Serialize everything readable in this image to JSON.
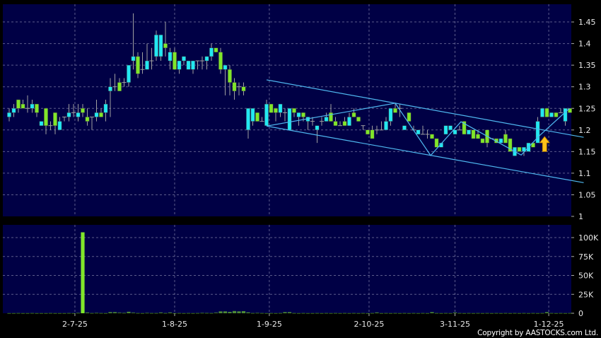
{
  "copyright": "Copyright by AASTOCKS.com Ltd.",
  "colors": {
    "background": "#000000",
    "plot": "#000045",
    "grid": "#5c5c8c",
    "up": "#22e8f2",
    "down": "#80e62a",
    "volume": "#80e62a",
    "trendline": "#4fb8f0",
    "arrow": "#ffc21a"
  },
  "chart_data": {
    "type": "candlestick",
    "price_axis": {
      "range": [
        1.0,
        1.475
      ],
      "ticks": [
        "1",
        "1.05",
        "1.1",
        "1.15",
        "1.2",
        "1.25",
        "1.3",
        "1.35",
        "1.4",
        "1.45"
      ],
      "side": "right"
    },
    "volume_axis": {
      "range": [
        0,
        112000
      ],
      "ticks": [
        "0",
        "25K",
        "50K",
        "75K",
        "100K"
      ],
      "side": "right"
    },
    "date_ticks": [
      "2-7-25",
      "1-8-25",
      "1-9-25",
      "2-10-25",
      "3-11-25",
      "1-12-25"
    ],
    "grid": true,
    "ohlc": [
      [
        1.23,
        1.25,
        1.22,
        1.24
      ],
      [
        1.24,
        1.26,
        1.23,
        1.25
      ],
      [
        1.27,
        1.27,
        1.24,
        1.25
      ],
      [
        1.26,
        1.27,
        1.25,
        1.25
      ],
      [
        1.25,
        1.28,
        1.24,
        1.25
      ],
      [
        1.25,
        1.27,
        1.24,
        1.26
      ],
      [
        1.26,
        1.26,
        1.23,
        1.24
      ],
      [
        1.21,
        1.22,
        1.21,
        1.22
      ],
      [
        1.25,
        1.25,
        1.19,
        1.21
      ],
      [
        1.21,
        1.22,
        1.2,
        1.21
      ],
      [
        1.24,
        1.24,
        1.19,
        1.21
      ],
      [
        1.2,
        1.23,
        1.2,
        1.22
      ],
      [
        1.23,
        1.23,
        1.22,
        1.23
      ],
      [
        1.23,
        1.26,
        1.22,
        1.24
      ],
      [
        1.24,
        1.26,
        1.23,
        1.24
      ],
      [
        1.23,
        1.26,
        1.22,
        1.24
      ],
      [
        1.25,
        1.26,
        1.23,
        1.24
      ],
      [
        1.23,
        1.25,
        1.21,
        1.22
      ],
      [
        1.23,
        1.23,
        1.2,
        1.23
      ],
      [
        1.23,
        1.27,
        1.22,
        1.24
      ],
      [
        1.24,
        1.25,
        1.23,
        1.23
      ],
      [
        1.24,
        1.27,
        1.22,
        1.26
      ],
      [
        1.29,
        1.32,
        1.23,
        1.3
      ],
      [
        1.3,
        1.33,
        1.29,
        1.3
      ],
      [
        1.31,
        1.32,
        1.29,
        1.29
      ],
      [
        1.31,
        1.32,
        1.3,
        1.31
      ],
      [
        1.31,
        1.35,
        1.3,
        1.35
      ],
      [
        1.36,
        1.47,
        1.34,
        1.37
      ],
      [
        1.37,
        1.38,
        1.32,
        1.33
      ],
      [
        1.34,
        1.38,
        1.33,
        1.34
      ],
      [
        1.34,
        1.4,
        1.34,
        1.36
      ],
      [
        1.36,
        1.39,
        1.34,
        1.36
      ],
      [
        1.37,
        1.43,
        1.36,
        1.42
      ],
      [
        1.37,
        1.42,
        1.36,
        1.42
      ],
      [
        1.4,
        1.45,
        1.37,
        1.39
      ],
      [
        1.36,
        1.39,
        1.34,
        1.38
      ],
      [
        1.38,
        1.39,
        1.34,
        1.34
      ],
      [
        1.34,
        1.36,
        1.33,
        1.36
      ],
      [
        1.36,
        1.37,
        1.35,
        1.37
      ],
      [
        1.34,
        1.36,
        1.34,
        1.36
      ],
      [
        1.34,
        1.36,
        1.33,
        1.36
      ],
      [
        1.36,
        1.36,
        1.34,
        1.36
      ],
      [
        1.36,
        1.37,
        1.34,
        1.36
      ],
      [
        1.36,
        1.37,
        1.34,
        1.37
      ],
      [
        1.37,
        1.4,
        1.36,
        1.39
      ],
      [
        1.39,
        1.39,
        1.38,
        1.38
      ],
      [
        1.38,
        1.39,
        1.33,
        1.34
      ],
      [
        1.34,
        1.35,
        1.28,
        1.35
      ],
      [
        1.34,
        1.35,
        1.28,
        1.31
      ],
      [
        1.31,
        1.32,
        1.27,
        1.29
      ],
      [
        1.3,
        1.31,
        1.28,
        1.3
      ],
      [
        1.3,
        1.31,
        1.28,
        1.29
      ],
      [
        1.2,
        1.25,
        1.18,
        1.25
      ],
      [
        1.22,
        1.25,
        1.21,
        1.25
      ],
      [
        1.24,
        1.24,
        1.22,
        1.22
      ],
      [
        1.22,
        1.23,
        1.22,
        1.22
      ],
      [
        1.21,
        1.27,
        1.21,
        1.26
      ],
      [
        1.26,
        1.26,
        1.24,
        1.24
      ],
      [
        1.25,
        1.25,
        1.22,
        1.24
      ],
      [
        1.24,
        1.26,
        1.23,
        1.26
      ],
      [
        1.24,
        1.25,
        1.22,
        1.24
      ],
      [
        1.2,
        1.25,
        1.2,
        1.25
      ],
      [
        1.25,
        1.25,
        1.23,
        1.24
      ],
      [
        1.23,
        1.24,
        1.21,
        1.24
      ],
      [
        1.24,
        1.24,
        1.22,
        1.23
      ],
      [
        1.22,
        1.23,
        1.2,
        1.23
      ],
      [
        1.22,
        1.23,
        1.21,
        1.22
      ],
      [
        1.2,
        1.21,
        1.17,
        1.21
      ],
      [
        1.22,
        1.23,
        1.21,
        1.22
      ],
      [
        1.22,
        1.24,
        1.22,
        1.23
      ],
      [
        1.24,
        1.26,
        1.22,
        1.22
      ],
      [
        1.22,
        1.23,
        1.21,
        1.21
      ],
      [
        1.21,
        1.22,
        1.21,
        1.21
      ],
      [
        1.22,
        1.23,
        1.21,
        1.21
      ],
      [
        1.21,
        1.24,
        1.21,
        1.23
      ],
      [
        1.24,
        1.25,
        1.23,
        1.23
      ],
      [
        1.23,
        1.23,
        1.22,
        1.22
      ],
      [
        1.21,
        1.21,
        1.2,
        1.21
      ],
      [
        1.2,
        1.2,
        1.19,
        1.19
      ],
      [
        1.2,
        1.21,
        1.18,
        1.18
      ],
      [
        1.2,
        1.21,
        1.19,
        1.2
      ],
      [
        1.2,
        1.22,
        1.2,
        1.2
      ],
      [
        1.2,
        1.23,
        1.2,
        1.22
      ],
      [
        1.22,
        1.25,
        1.21,
        1.25
      ],
      [
        1.25,
        1.26,
        1.24,
        1.24
      ],
      [
        1.25,
        1.26,
        1.23,
        1.25
      ],
      [
        1.2,
        1.21,
        1.2,
        1.21
      ],
      [
        1.24,
        1.24,
        1.22,
        1.22
      ],
      [
        1.2,
        1.21,
        1.2,
        1.2
      ],
      [
        1.19,
        1.2,
        1.19,
        1.2
      ],
      [
        1.19,
        1.21,
        1.19,
        1.19
      ],
      [
        1.19,
        1.2,
        1.18,
        1.19
      ],
      [
        1.19,
        1.19,
        1.18,
        1.18
      ],
      [
        1.18,
        1.18,
        1.16,
        1.16
      ],
      [
        1.16,
        1.17,
        1.16,
        1.17
      ],
      [
        1.19,
        1.21,
        1.19,
        1.21
      ],
      [
        1.2,
        1.21,
        1.2,
        1.21
      ],
      [
        1.19,
        1.2,
        1.19,
        1.2
      ],
      [
        1.2,
        1.21,
        1.2,
        1.2
      ],
      [
        1.22,
        1.22,
        1.19,
        1.19
      ],
      [
        1.19,
        1.2,
        1.19,
        1.2
      ],
      [
        1.2,
        1.2,
        1.18,
        1.18
      ],
      [
        1.19,
        1.2,
        1.18,
        1.18
      ],
      [
        1.18,
        1.18,
        1.17,
        1.17
      ],
      [
        1.2,
        1.2,
        1.16,
        1.17
      ],
      [
        1.18,
        1.18,
        1.18,
        1.18
      ],
      [
        1.18,
        1.18,
        1.17,
        1.17
      ],
      [
        1.17,
        1.18,
        1.17,
        1.18
      ],
      [
        1.19,
        1.2,
        1.17,
        1.17
      ],
      [
        1.18,
        1.18,
        1.15,
        1.15
      ],
      [
        1.14,
        1.16,
        1.14,
        1.16
      ],
      [
        1.16,
        1.16,
        1.15,
        1.15
      ],
      [
        1.15,
        1.16,
        1.14,
        1.16
      ],
      [
        1.15,
        1.17,
        1.15,
        1.17
      ],
      [
        1.17,
        1.17,
        1.16,
        1.16
      ],
      [
        1.17,
        1.23,
        1.17,
        1.22
      ],
      [
        1.23,
        1.25,
        1.23,
        1.25
      ],
      [
        1.25,
        1.25,
        1.23,
        1.23
      ],
      [
        1.23,
        1.24,
        1.23,
        1.24
      ],
      [
        1.24,
        1.24,
        1.23,
        1.23
      ],
      [
        1.24,
        1.25,
        1.24,
        1.24
      ],
      [
        1.22,
        1.25,
        1.21,
        1.25
      ],
      [
        1.25,
        1.25,
        1.24,
        1.24
      ]
    ],
    "volume": [
      200,
      200,
      300,
      200,
      200,
      300,
      200,
      200,
      200,
      300,
      200,
      200,
      200,
      300,
      200,
      500,
      107000,
      1000,
      300,
      500,
      300,
      200,
      1500,
      1500,
      800,
      500,
      2000,
      800,
      300,
      200,
      500,
      300,
      300,
      1000,
      300,
      1000,
      200,
      300,
      200,
      300,
      200,
      300,
      500,
      400,
      300,
      800,
      2500,
      2500,
      1800,
      3000,
      2500,
      2800,
      1200,
      300,
      500,
      300,
      200,
      300,
      200,
      300,
      1500,
      1500,
      300,
      200,
      300,
      200,
      200,
      300,
      200,
      300,
      200,
      300,
      200,
      300,
      200,
      300,
      200,
      300,
      200,
      300,
      1000,
      200,
      300,
      200,
      300,
      200,
      300,
      200,
      300,
      200,
      300,
      200,
      1500,
      300,
      200,
      300,
      200,
      1000,
      300,
      200,
      300,
      200,
      300,
      200,
      300,
      200,
      300,
      200,
      300,
      200,
      300,
      200,
      300,
      200,
      300,
      200,
      300,
      1500,
      300,
      200,
      300,
      200,
      300
    ],
    "trendlines": [
      {
        "name": "channel-upper",
        "points": [
          [
            56,
            1.316
          ],
          [
            125,
            1.183
          ]
        ]
      },
      {
        "name": "channel-lower",
        "points": [
          [
            56,
            1.209
          ],
          [
            125,
            1.078
          ]
        ]
      },
      {
        "name": "zigzag",
        "points": [
          [
            56,
            1.209
          ],
          [
            84,
            1.262
          ],
          [
            91.7,
            1.141
          ],
          [
            98.3,
            1.219
          ],
          [
            111.4,
            1.142
          ],
          [
            115.3,
            1.186
          ],
          [
            121.9,
            1.25
          ]
        ]
      }
    ],
    "annotation": {
      "type": "up-arrow",
      "bar": 116.5,
      "price_from": 1.15,
      "price_to": 1.185
    }
  }
}
